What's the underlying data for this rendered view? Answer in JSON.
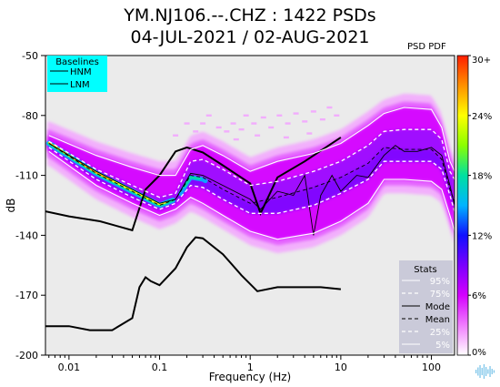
{
  "header": {
    "title_line1": "YM.NJ106.--.CHZ : 1422 PSDs",
    "title_line2": "04-JUL-2021 / 02-AUG-2021"
  },
  "colorbar": {
    "label": "PSD PDF",
    "ticks": [
      "30+",
      "24%",
      "18%",
      "12%",
      "6%",
      "0%"
    ],
    "tick_values": [
      30,
      24,
      18,
      12,
      6,
      0
    ],
    "colormap": [
      "#ffffff",
      "#f07cff",
      "#d400ff",
      "#7a00ff",
      "#1010ff",
      "#00b4ff",
      "#00e0a0",
      "#8aff00",
      "#ffff00",
      "#ff9000",
      "#ff1e00"
    ]
  },
  "chart_data": {
    "type": "line",
    "title": "YM.NJ106.--.CHZ : 1422 PSDs",
    "subtitle": "04-JUL-2021 / 02-AUG-2021",
    "xlabel": "Frequency (Hz)",
    "ylabel": "dB",
    "xscale": "log",
    "xlim": [
      0.0055,
      180
    ],
    "ylim": [
      -200,
      -50
    ],
    "xticks": [
      0.01,
      0.1,
      1,
      10,
      100
    ],
    "xtick_labels": [
      "0.01",
      "0.1",
      "1",
      "10",
      "100"
    ],
    "yticks": [
      -50,
      -80,
      -110,
      -140,
      -170,
      -200
    ],
    "ytick_labels": [
      "-50",
      "-80",
      "-110",
      "-140",
      "-170",
      "-200"
    ],
    "grid": false,
    "plot_background": "#ebebeb",
    "baselines_legend": {
      "title": "Baselines",
      "placement": "top-left",
      "background": "#00ffff",
      "entries": [
        "HNM",
        "LNM"
      ]
    },
    "stats_legend": {
      "title": "Stats",
      "placement": "bottom-right",
      "background": "#c8c8d8",
      "entries": [
        "95%",
        "75%",
        "Mode",
        "Mean",
        "25%",
        "5%"
      ]
    },
    "series": [
      {
        "name": "HNM",
        "style": "solid-black-thick",
        "x": [
          0.0055,
          0.01,
          0.022,
          0.05,
          0.07,
          0.1,
          0.15,
          0.2,
          0.3,
          0.5,
          1.0,
          1.3,
          2,
          4,
          10
        ],
        "y": [
          -128,
          -130.5,
          -133,
          -137.5,
          -117,
          -110,
          -98,
          -96,
          -98.5,
          -105,
          -114,
          -129,
          -111,
          -103,
          -91
        ]
      },
      {
        "name": "LNM",
        "style": "solid-black-thick",
        "x": [
          0.0055,
          0.01,
          0.017,
          0.03,
          0.05,
          0.06,
          0.07,
          0.08,
          0.1,
          0.15,
          0.2,
          0.25,
          0.3,
          0.5,
          0.8,
          1.2,
          2,
          4,
          6,
          10
        ],
        "y": [
          -185.5,
          -185.5,
          -187.5,
          -187.5,
          -181.5,
          -166,
          -161,
          -163,
          -165,
          -156.5,
          -146,
          -141,
          -141.5,
          -149.5,
          -160,
          -168,
          -166,
          -166,
          -166,
          -167
        ]
      },
      {
        "name": "95%",
        "style": "solid-white",
        "x": [
          0.006,
          0.02,
          0.05,
          0.1,
          0.15,
          0.22,
          0.3,
          0.5,
          1,
          2,
          5,
          10,
          20,
          30,
          50,
          100,
          130,
          160,
          180
        ],
        "y": [
          -90,
          -100,
          -106,
          -110,
          -110,
          -97,
          -95,
          -100,
          -108,
          -103,
          -99,
          -94,
          -85,
          -79,
          -76,
          -77,
          -86,
          -103,
          -108
        ]
      },
      {
        "name": "75%",
        "style": "dashed-white",
        "x": [
          0.006,
          0.02,
          0.05,
          0.1,
          0.15,
          0.22,
          0.3,
          0.5,
          1,
          2,
          5,
          10,
          20,
          30,
          50,
          100,
          130,
          160,
          180
        ],
        "y": [
          -93,
          -107,
          -115,
          -121,
          -119,
          -103,
          -102,
          -107,
          -115,
          -113,
          -108,
          -103,
          -95,
          -88,
          -87,
          -87,
          -92,
          -108,
          -112
        ]
      },
      {
        "name": "Mode",
        "style": "solid-black-thin",
        "x": [
          0.006,
          0.02,
          0.05,
          0.1,
          0.15,
          0.22,
          0.3,
          0.5,
          1,
          1.3,
          2,
          3,
          4,
          5,
          6,
          8,
          10,
          15,
          20,
          30,
          40,
          50,
          70,
          100,
          130,
          160,
          180
        ],
        "y": [
          -94,
          -108,
          -117,
          -124,
          -122,
          -109,
          -110,
          -115,
          -122,
          -127,
          -118,
          -120,
          -110,
          -140,
          -120,
          -110,
          -118,
          -110,
          -111,
          -100,
          -95,
          -98,
          -98,
          -96,
          -100,
          -115,
          -125
        ]
      },
      {
        "name": "Mean",
        "style": "dashed-black",
        "x": [
          0.006,
          0.02,
          0.05,
          0.1,
          0.15,
          0.22,
          0.3,
          0.5,
          1,
          2,
          5,
          10,
          20,
          30,
          50,
          100,
          130,
          160,
          180
        ],
        "y": [
          -94,
          -109,
          -118,
          -125,
          -122,
          -110,
          -111,
          -117,
          -124,
          -121,
          -116,
          -111,
          -104,
          -96,
          -97,
          -97,
          -102,
          -117,
          -123
        ]
      },
      {
        "name": "25%",
        "style": "dashed-white",
        "x": [
          0.006,
          0.02,
          0.05,
          0.1,
          0.15,
          0.22,
          0.3,
          0.5,
          1,
          2,
          5,
          10,
          20,
          30,
          50,
          100,
          130,
          160,
          180
        ],
        "y": [
          -96,
          -112,
          -121,
          -127,
          -124,
          -115,
          -116,
          -122,
          -129,
          -129,
          -125,
          -119,
          -112,
          -103,
          -103,
          -103,
          -107,
          -120,
          -128
        ]
      },
      {
        "name": "5%",
        "style": "solid-white",
        "x": [
          0.006,
          0.02,
          0.05,
          0.1,
          0.15,
          0.22,
          0.3,
          0.5,
          1,
          2,
          5,
          10,
          20,
          30,
          50,
          100,
          130,
          160,
          180
        ],
        "y": [
          -98,
          -115,
          -124,
          -130,
          -127,
          -121,
          -124,
          -130,
          -138,
          -142,
          -139,
          -133,
          -124,
          -112,
          -112,
          -113,
          -117,
          -130,
          -138
        ]
      }
    ]
  }
}
